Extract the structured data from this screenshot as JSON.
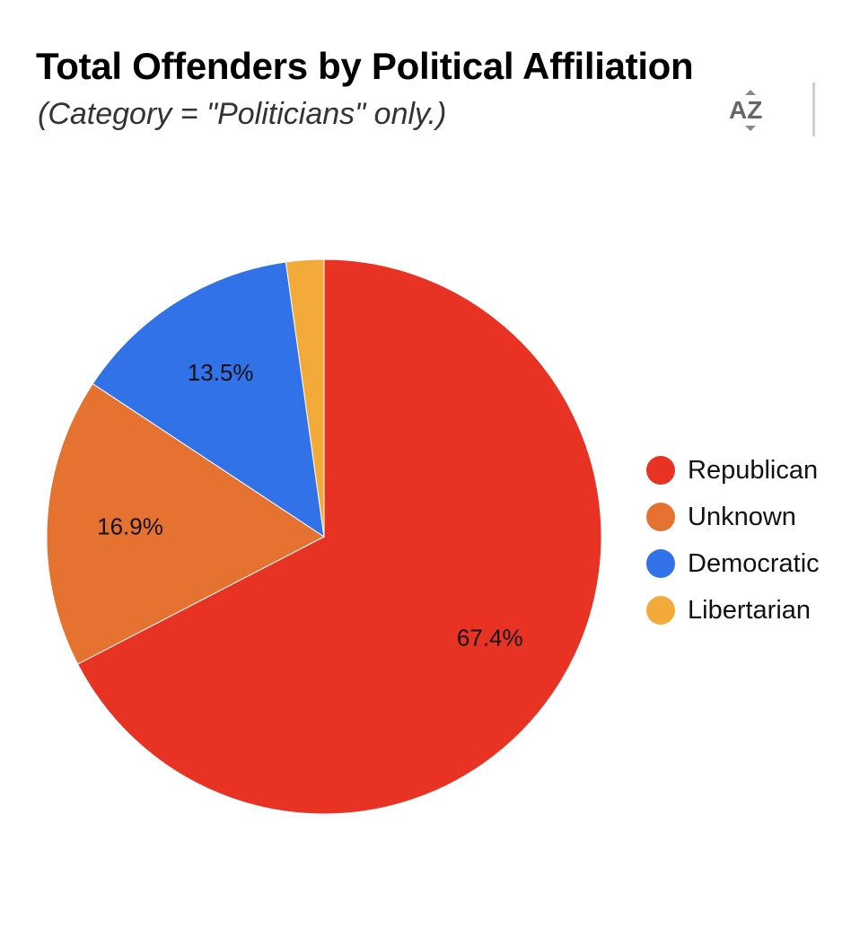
{
  "header": {
    "title": "Total Offenders by Political Affiliation",
    "subtitle": "(Category = \"Politicians\" only.)"
  },
  "toolbar": {
    "sort_icon": "sort-az-icon",
    "sort_label": "AZ"
  },
  "chart_data": {
    "type": "pie",
    "title": "Total Offenders by Political Affiliation",
    "subtitle": "(Category = \"Politicians\" only.)",
    "slices": [
      {
        "label": "Republican",
        "percent": 67.4,
        "display": "67.4%",
        "color": "#E83324"
      },
      {
        "label": "Unknown",
        "percent": 16.9,
        "display": "16.9%",
        "color": "#E57230"
      },
      {
        "label": "Democratic",
        "percent": 13.5,
        "display": "13.5%",
        "color": "#3172E8"
      },
      {
        "label": "Libertarian",
        "percent": 2.2,
        "display": "",
        "color": "#F2AA3B"
      }
    ],
    "legend_position": "right"
  }
}
